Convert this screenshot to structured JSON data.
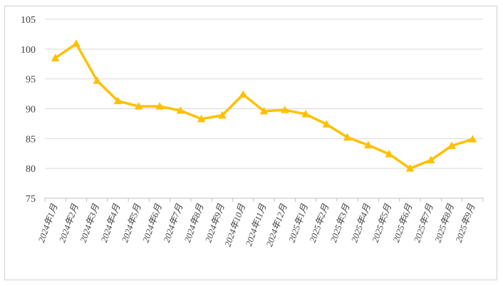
{
  "chart_data": {
    "type": "line",
    "title": "",
    "xlabel": "",
    "ylabel": "",
    "ylim": [
      75,
      105
    ],
    "yticks": [
      75,
      80,
      85,
      90,
      95,
      100,
      105
    ],
    "grid": true,
    "legend": "none",
    "categories": [
      "2024年1月",
      "2024年2月",
      "2024年3月",
      "2024年4月",
      "2024年5月",
      "2024年6月",
      "2024年7月",
      "2024年8月",
      "2024年9月",
      "2024年10月",
      "2024年11月",
      "2024年12月",
      "2025年1月",
      "2025年2月",
      "2025年3月",
      "2025年4月",
      "2025年5月",
      "2025年6月",
      "2025年7月",
      "2025年8月",
      "2025年9月"
    ],
    "series": [
      {
        "name": "",
        "color": "#FFC000",
        "marker": "triangle",
        "values": [
          98.5,
          100.9,
          94.7,
          91.3,
          90.4,
          90.4,
          89.7,
          88.3,
          88.9,
          92.4,
          89.6,
          89.8,
          89.1,
          87.4,
          85.2,
          83.9,
          82.4,
          80.0,
          81.4,
          83.8,
          84.9
        ]
      }
    ]
  }
}
